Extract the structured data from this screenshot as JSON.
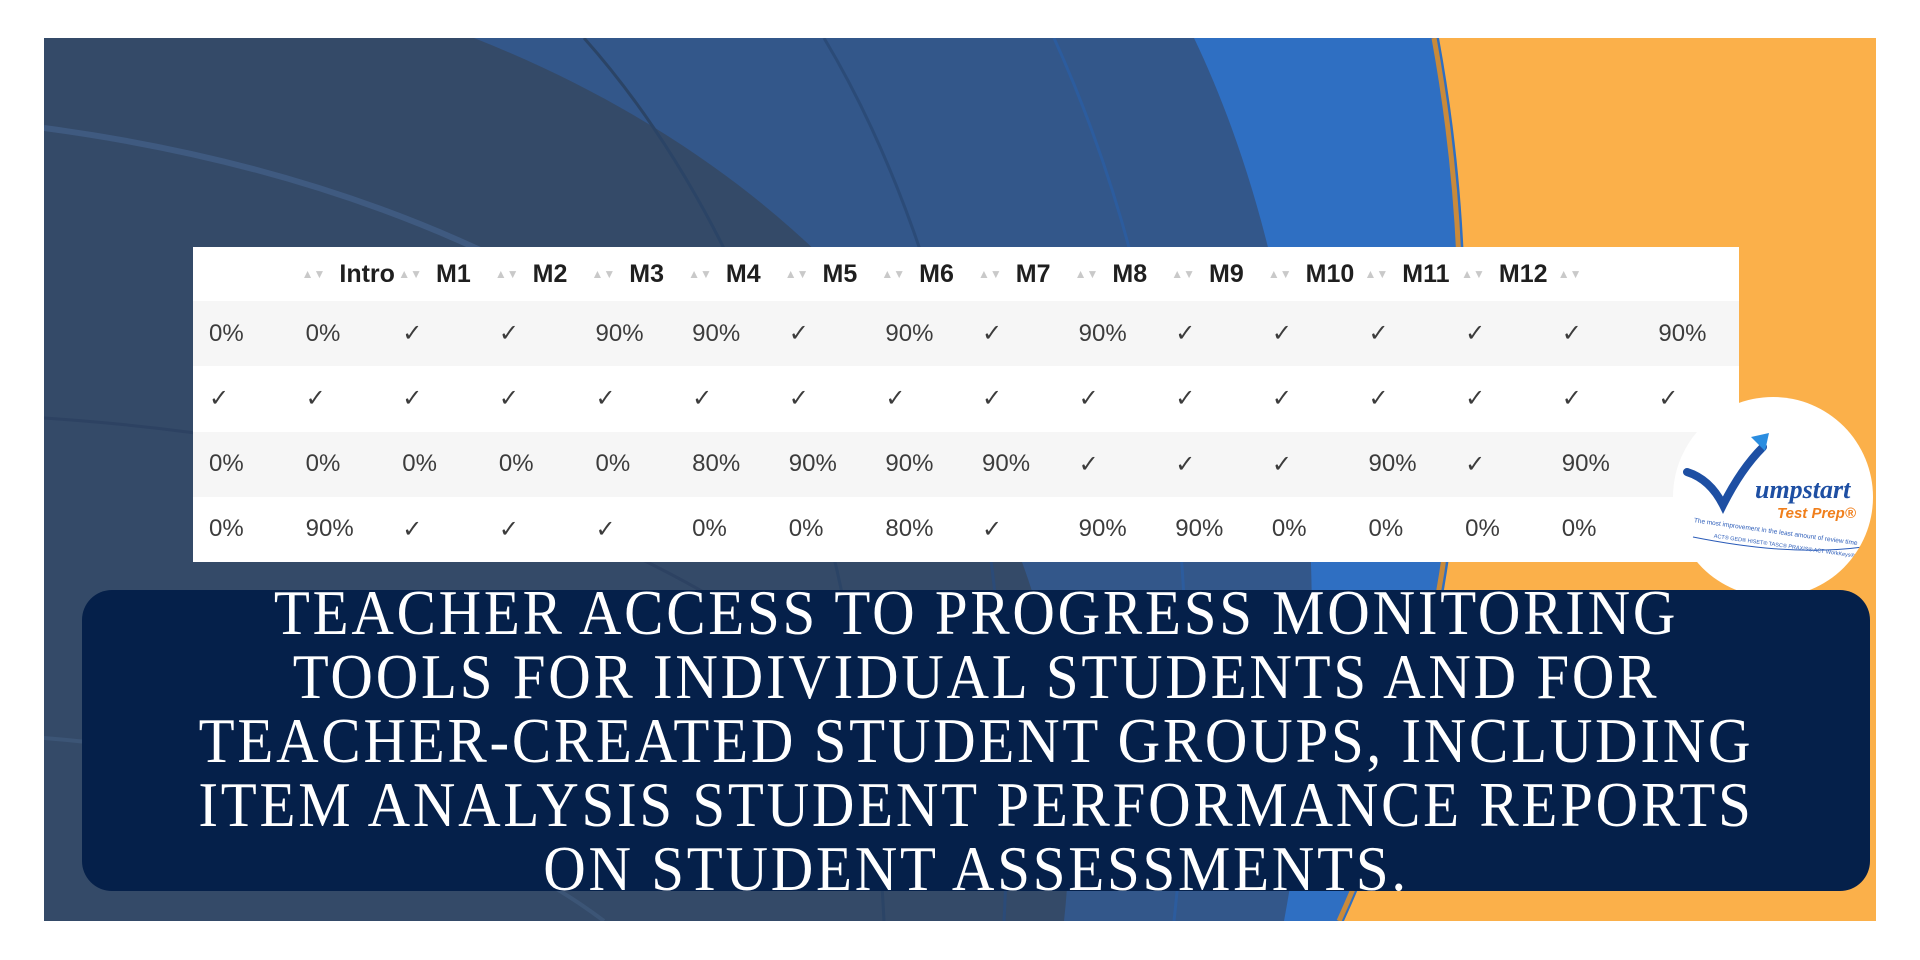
{
  "table": {
    "headers": [
      "",
      "Intro",
      "M1",
      "M2",
      "M3",
      "M4",
      "M5",
      "M6",
      "M7",
      "M8",
      "M9",
      "M10",
      "M11",
      "M12",
      ""
    ],
    "rows": [
      [
        "0%",
        "0%",
        "✓",
        "✓",
        "90%",
        "90%",
        "✓",
        "90%",
        "✓",
        "90%",
        "✓",
        "✓",
        "✓",
        "✓",
        "✓",
        "90%"
      ],
      [
        "✓",
        "✓",
        "✓",
        "✓",
        "✓",
        "✓",
        "✓",
        "✓",
        "✓",
        "✓",
        "✓",
        "✓",
        "✓",
        "✓",
        "✓",
        "✓"
      ],
      [
        "0%",
        "0%",
        "0%",
        "0%",
        "0%",
        "80%",
        "90%",
        "90%",
        "90%",
        "✓",
        "✓",
        "✓",
        "90%",
        "✓",
        "90%",
        ""
      ],
      [
        "0%",
        "90%",
        "✓",
        "✓",
        "✓",
        "0%",
        "0%",
        "80%",
        "✓",
        "90%",
        "90%",
        "0%",
        "0%",
        "0%",
        "0%",
        ""
      ]
    ],
    "sort_glyph": "▲▼",
    "check_icon": "check-icon"
  },
  "logo": {
    "brand": "umpstart",
    "sub": "Test Prep",
    "registered": "®",
    "tagline": "The most improvement in the least amount of review time",
    "tests": "ACT® GED® HiSET® TASC® PRAXIS® ACT WorkKeys®"
  },
  "caption": {
    "text": "TEACHER ACCESS TO PROGRESS MONITORING TOOLS FOR INDIVIDUAL STUDENTS AND FOR TEACHER-CREATED STUDENT GROUPS, INCLUDING ITEM ANALYSIS STUDENT PERFORMANCE REPORTS ON STUDENT ASSESSMENTS."
  },
  "colors": {
    "background_dark": "#344a68",
    "background_blue": "#2f6fc2",
    "background_orange": "#fbb04a",
    "banner": "#05204a",
    "logo_blue": "#1e4fa3",
    "logo_orange": "#f07f1c"
  }
}
